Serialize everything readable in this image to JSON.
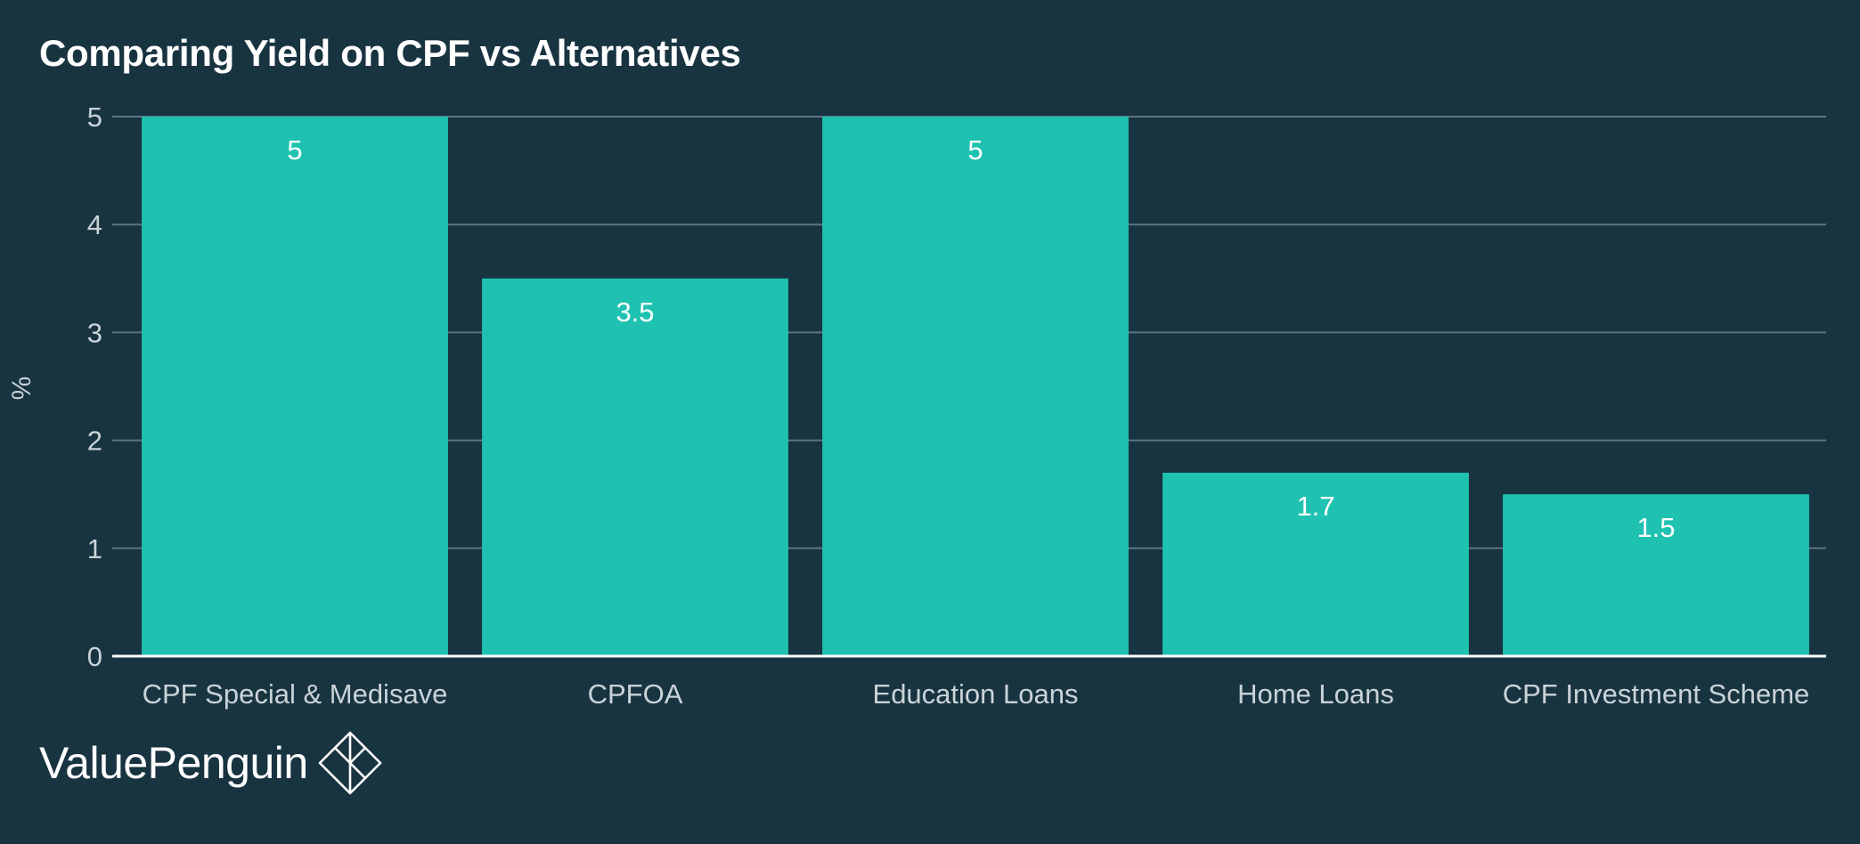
{
  "chart_data": {
    "type": "bar",
    "title": "Comparing Yield on CPF vs Alternatives",
    "ylabel": "%",
    "xlabel": "",
    "ylim": [
      0,
      5
    ],
    "yticks": [
      0,
      1,
      2,
      3,
      4,
      5
    ],
    "categories": [
      "CPF Special & Medisave",
      "CPFOA",
      "Education Loans",
      "Home Loans",
      "CPF Investment Scheme"
    ],
    "values": [
      5,
      3.5,
      5,
      1.7,
      1.5
    ],
    "data_labels": [
      "5",
      "3.5",
      "5",
      "1.7",
      "1.5"
    ],
    "grid": true,
    "legend": "none"
  },
  "colors": {
    "background": "#193441",
    "bar": "#1fc2b1",
    "grid": "#5d7580",
    "axis": "#ffffff",
    "text": "#ffffff",
    "tick_text": "#c9d3d8"
  },
  "brand": {
    "name": "ValuePenguin",
    "logo_icon": "valuepenguin-diamond-logo"
  }
}
